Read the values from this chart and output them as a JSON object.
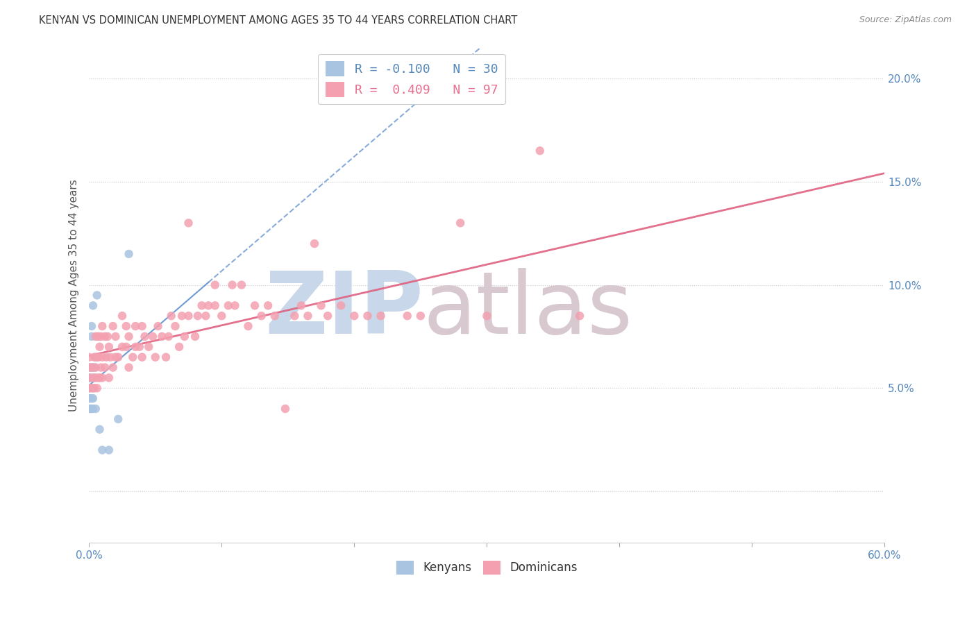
{
  "title": "KENYAN VS DOMINICAN UNEMPLOYMENT AMONG AGES 35 TO 44 YEARS CORRELATION CHART",
  "source": "Source: ZipAtlas.com",
  "ylabel": "Unemployment Among Ages 35 to 44 years",
  "xlim": [
    0.0,
    0.6
  ],
  "ylim": [
    -0.025,
    0.215
  ],
  "xticks": [
    0.0,
    0.1,
    0.2,
    0.3,
    0.4,
    0.5,
    0.6
  ],
  "xticklabels": [
    "0.0%",
    "",
    "",
    "",
    "",
    "",
    "60.0%"
  ],
  "yticks": [
    0.0,
    0.05,
    0.1,
    0.15,
    0.2
  ],
  "yticklabels": [
    "",
    "5.0%",
    "10.0%",
    "15.0%",
    "20.0%"
  ],
  "legend_r_kenyan": "-0.100",
  "legend_n_kenyan": "30",
  "legend_r_dominican": "0.409",
  "legend_n_dominican": "97",
  "kenyan_color": "#a8c4e0",
  "dominican_color": "#f4a0b0",
  "kenyan_line_color": "#5588cc",
  "dominican_line_color": "#e06080",
  "kenyan_x": [
    0.0,
    0.0,
    0.0,
    0.0,
    0.0,
    0.0,
    0.0,
    0.0,
    0.001,
    0.001,
    0.002,
    0.002,
    0.002,
    0.002,
    0.002,
    0.003,
    0.003,
    0.003,
    0.003,
    0.003,
    0.004,
    0.004,
    0.005,
    0.005,
    0.006,
    0.008,
    0.01,
    0.015,
    0.022,
    0.03
  ],
  "kenyan_y": [
    0.04,
    0.045,
    0.045,
    0.05,
    0.05,
    0.055,
    0.055,
    0.06,
    0.04,
    0.055,
    0.04,
    0.045,
    0.06,
    0.075,
    0.08,
    0.04,
    0.045,
    0.05,
    0.06,
    0.09,
    0.055,
    0.06,
    0.04,
    0.065,
    0.095,
    0.03,
    0.02,
    0.02,
    0.035,
    0.115
  ],
  "dominican_x": [
    0.0,
    0.0,
    0.0,
    0.0,
    0.002,
    0.002,
    0.003,
    0.004,
    0.004,
    0.005,
    0.005,
    0.005,
    0.006,
    0.006,
    0.007,
    0.007,
    0.007,
    0.008,
    0.008,
    0.009,
    0.009,
    0.01,
    0.01,
    0.01,
    0.012,
    0.012,
    0.013,
    0.014,
    0.015,
    0.015,
    0.016,
    0.018,
    0.018,
    0.02,
    0.02,
    0.022,
    0.025,
    0.025,
    0.028,
    0.028,
    0.03,
    0.03,
    0.033,
    0.035,
    0.035,
    0.038,
    0.04,
    0.04,
    0.042,
    0.045,
    0.048,
    0.05,
    0.052,
    0.055,
    0.058,
    0.06,
    0.062,
    0.065,
    0.068,
    0.07,
    0.072,
    0.075,
    0.075,
    0.08,
    0.082,
    0.085,
    0.088,
    0.09,
    0.095,
    0.095,
    0.1,
    0.105,
    0.108,
    0.11,
    0.115,
    0.12,
    0.125,
    0.13,
    0.135,
    0.14,
    0.148,
    0.155,
    0.16,
    0.165,
    0.17,
    0.175,
    0.18,
    0.19,
    0.2,
    0.21,
    0.22,
    0.24,
    0.25,
    0.28,
    0.3,
    0.34,
    0.37
  ],
  "dominican_y": [
    0.05,
    0.055,
    0.06,
    0.065,
    0.05,
    0.06,
    0.055,
    0.05,
    0.065,
    0.055,
    0.06,
    0.075,
    0.05,
    0.065,
    0.055,
    0.065,
    0.075,
    0.055,
    0.07,
    0.06,
    0.075,
    0.055,
    0.065,
    0.08,
    0.06,
    0.075,
    0.065,
    0.075,
    0.055,
    0.07,
    0.065,
    0.06,
    0.08,
    0.065,
    0.075,
    0.065,
    0.07,
    0.085,
    0.07,
    0.08,
    0.06,
    0.075,
    0.065,
    0.07,
    0.08,
    0.07,
    0.065,
    0.08,
    0.075,
    0.07,
    0.075,
    0.065,
    0.08,
    0.075,
    0.065,
    0.075,
    0.085,
    0.08,
    0.07,
    0.085,
    0.075,
    0.085,
    0.13,
    0.075,
    0.085,
    0.09,
    0.085,
    0.09,
    0.09,
    0.1,
    0.085,
    0.09,
    0.1,
    0.09,
    0.1,
    0.08,
    0.09,
    0.085,
    0.09,
    0.085,
    0.04,
    0.085,
    0.09,
    0.085,
    0.12,
    0.09,
    0.085,
    0.09,
    0.085,
    0.085,
    0.085,
    0.085,
    0.085,
    0.13,
    0.085,
    0.165,
    0.085
  ]
}
